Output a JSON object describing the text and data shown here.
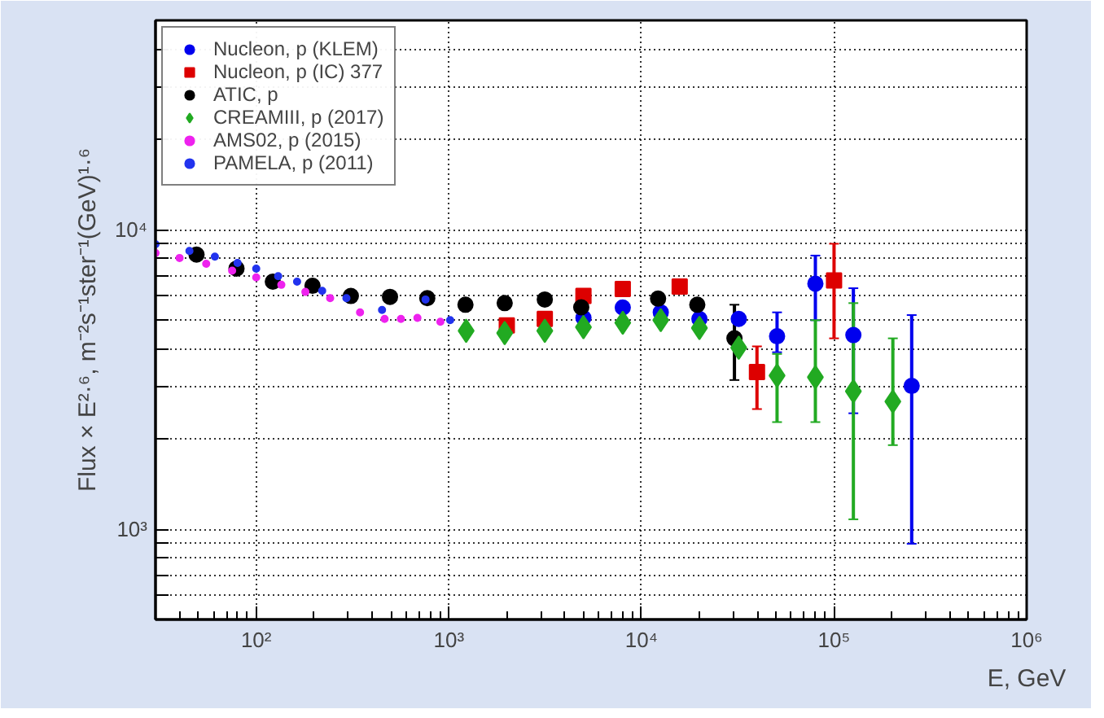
{
  "chart_data": {
    "type": "scatter",
    "xlabel": "E, GeV",
    "ylabel": "Flux × E²·⁶, m⁻²s⁻¹ster⁻¹(GeV)¹·⁶",
    "log": "xy",
    "grid": true,
    "legend": "top left",
    "xlim": [
      30,
      1000000
    ],
    "ylim": [
      500,
      50000
    ],
    "xticks": [
      {
        "value": 100,
        "label": "10²"
      },
      {
        "value": 1000,
        "label": "10³"
      },
      {
        "value": 10000,
        "label": "10⁴"
      },
      {
        "value": 100000,
        "label": "10⁵"
      },
      {
        "value": 1000000,
        "label": "10⁶"
      }
    ],
    "yticks": [
      {
        "value": 500,
        "label": null
      },
      {
        "value": 600,
        "label": null
      },
      {
        "value": 700,
        "label": null
      },
      {
        "value": 800,
        "label": null
      },
      {
        "value": 900,
        "label": null
      },
      {
        "value": 1000,
        "label": "10³"
      },
      {
        "value": 2000,
        "label": null
      },
      {
        "value": 3000,
        "label": null
      },
      {
        "value": 4000,
        "label": null
      },
      {
        "value": 5000,
        "label": null
      },
      {
        "value": 6000,
        "label": null
      },
      {
        "value": 7000,
        "label": null
      },
      {
        "value": 8000,
        "label": null
      },
      {
        "value": 9000,
        "label": null
      },
      {
        "value": 10000,
        "label": "10⁴"
      },
      {
        "value": 20000,
        "label": null
      },
      {
        "value": 30000,
        "label": null
      },
      {
        "value": 40000,
        "label": null
      },
      {
        "value": 50000,
        "label": null
      }
    ],
    "series": [
      {
        "name": "Nucleon, p (KLEM)",
        "color": "#0000ee",
        "marker": "circle",
        "x": [
          5000,
          8000,
          12600,
          20000,
          32000,
          50600,
          80000,
          126000,
          253000
        ],
        "values": [
          5080,
          5500,
          5300,
          5040,
          5040,
          4410,
          6610,
          4450,
          3010
        ],
        "errors": [
          null,
          null,
          null,
          null,
          null,
          [
            3900,
            5300
          ],
          [
            4990,
            8200
          ],
          [
            2440,
            6380
          ],
          [
            895,
            5190
          ]
        ]
      },
      {
        "name": "Nucleon, p (IC) 377",
        "color": "#dd0000",
        "marker": "square",
        "x": [
          2000,
          3150,
          5000,
          8000,
          15800,
          39800,
          100000
        ],
        "values": [
          4790,
          5040,
          6010,
          6340,
          6460,
          3350,
          6770
        ],
        "errors": [
          null,
          null,
          null,
          null,
          null,
          [
            2520,
            4080
          ],
          [
            4340,
            8980
          ]
        ]
      },
      {
        "name": "ATIC, p",
        "color": "#000000",
        "marker": "circle",
        "x": [
          49,
          79,
          122,
          196,
          310,
          495,
          773,
          1220,
          1950,
          3150,
          4870,
          12200,
          19500,
          30400
        ],
        "values": [
          8260,
          7420,
          6710,
          6500,
          6010,
          5970,
          5910,
          5620,
          5690,
          5850,
          5510,
          5890,
          5620,
          4340
        ],
        "errors": [
          null,
          null,
          null,
          null,
          null,
          null,
          null,
          null,
          null,
          null,
          null,
          null,
          null,
          [
            3150,
            5620
          ]
        ]
      },
      {
        "name": "CREAMIII, p (2017)",
        "color": "#22aa22",
        "marker": "diamond",
        "x": [
          1230,
          1950,
          3150,
          5000,
          8000,
          12600,
          20000,
          32000,
          50600,
          80000,
          126000,
          202000
        ],
        "values": [
          4600,
          4520,
          4600,
          4730,
          4890,
          4990,
          4700,
          4040,
          3260,
          3220,
          2890,
          2670
        ],
        "errors": [
          null,
          null,
          null,
          null,
          null,
          null,
          null,
          null,
          [
            2280,
            3850
          ],
          [
            2280,
            4990
          ],
          [
            1080,
            5690
          ],
          [
            1910,
            4340
          ]
        ]
      },
      {
        "name": "AMS02, p (2015)",
        "color": "#ee22ee",
        "marker": "dot",
        "x": [
          30,
          40,
          55,
          75,
          100,
          135,
          180,
          242,
          346,
          464,
          564,
          687,
          904
        ],
        "values": [
          8360,
          8050,
          7700,
          7300,
          6930,
          6550,
          6200,
          5910,
          5300,
          5040,
          5040,
          5080,
          4930
        ]
      },
      {
        "name": "PAMELA, p (2011)",
        "color": "#2233ee",
        "marker": "dot",
        "x": [
          30,
          45,
          61,
          80,
          100,
          130,
          163,
          220,
          294,
          450,
          757,
          1016
        ],
        "values": [
          8950,
          8500,
          8130,
          7750,
          7420,
          7000,
          6710,
          6250,
          5910,
          5400,
          5850,
          4990
        ]
      }
    ]
  }
}
